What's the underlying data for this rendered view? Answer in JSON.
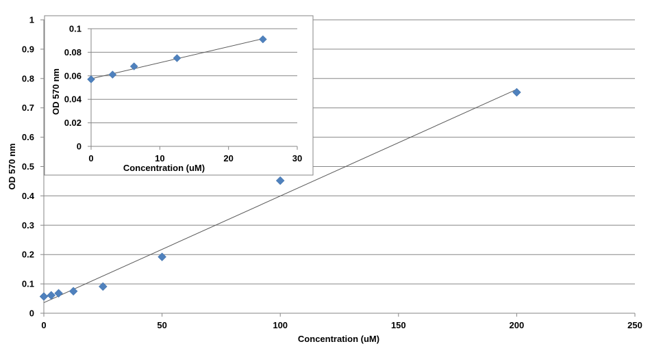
{
  "chart_data": [
    {
      "id": "main",
      "type": "scatter",
      "xlabel": "Concentration (uM)",
      "ylabel": "OD 570 nm",
      "xlim": [
        0,
        250
      ],
      "ylim": [
        0,
        1
      ],
      "x_ticks": [
        "0",
        "50",
        "100",
        "150",
        "200",
        "250"
      ],
      "y_ticks": [
        "0",
        "0.1",
        "0.2",
        "0.3",
        "0.4",
        "0.5",
        "0.6",
        "0.7",
        "0.8",
        "0.9",
        "1"
      ],
      "grid": "horizontal",
      "marker": "diamond",
      "marker_color": "#4f81bd",
      "series": [
        {
          "points": [
            {
              "x": 0,
              "y": 0.057
            },
            {
              "x": 3.125,
              "y": 0.061
            },
            {
              "x": 6.25,
              "y": 0.068
            },
            {
              "x": 12.5,
              "y": 0.075
            },
            {
              "x": 25,
              "y": 0.091
            },
            {
              "x": 50,
              "y": 0.192
            },
            {
              "x": 100,
              "y": 0.452
            },
            {
              "x": 200,
              "y": 0.753
            }
          ]
        }
      ],
      "trendline": {
        "type": "linear",
        "from": [
          0,
          0.036
        ],
        "to": [
          200,
          0.763
        ]
      }
    },
    {
      "id": "inset",
      "type": "scatter",
      "xlabel": "Concentration (uM)",
      "ylabel": "OD 570 nm",
      "xlim": [
        0,
        30
      ],
      "ylim": [
        0,
        0.1
      ],
      "x_ticks": [
        "0",
        "10",
        "20",
        "30"
      ],
      "y_ticks": [
        "0",
        "0.02",
        "0.04",
        "0.06",
        "0.08",
        "0.1"
      ],
      "grid": "horizontal",
      "marker": "diamond",
      "marker_color": "#4f81bd",
      "series": [
        {
          "points": [
            {
              "x": 0,
              "y": 0.057
            },
            {
              "x": 3.125,
              "y": 0.061
            },
            {
              "x": 6.25,
              "y": 0.068
            },
            {
              "x": 12.5,
              "y": 0.075
            },
            {
              "x": 25,
              "y": 0.091
            }
          ]
        }
      ],
      "trendline": {
        "type": "linear",
        "from": [
          0,
          0.0575
        ],
        "to": [
          25,
          0.0915
        ]
      }
    }
  ]
}
